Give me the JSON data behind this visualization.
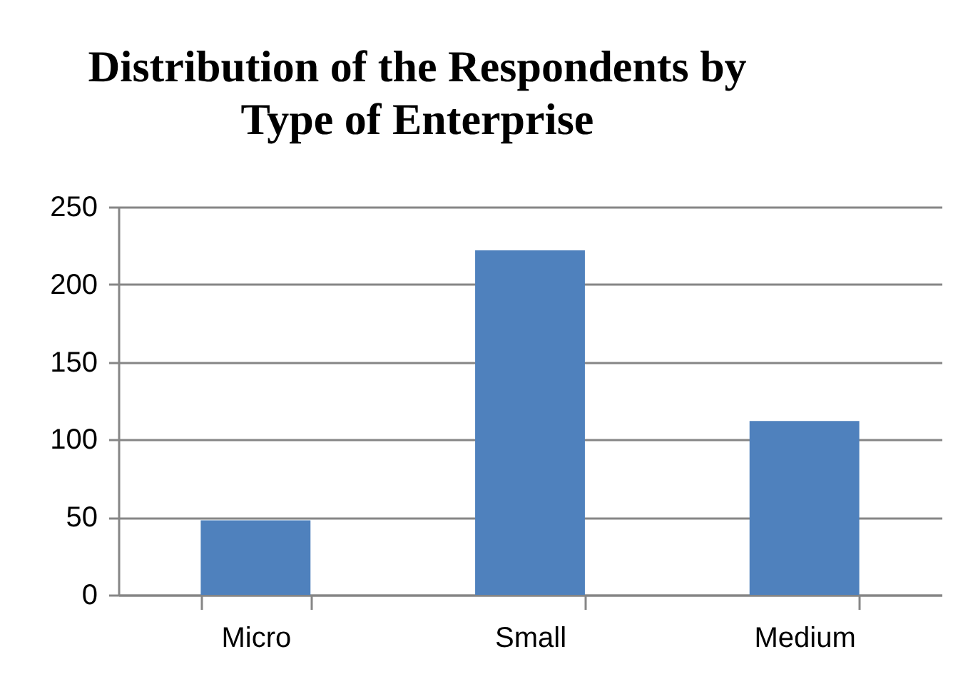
{
  "chart_data": {
    "type": "bar",
    "title": "Distribution of the Respondents by Type of Enterprise",
    "categories": [
      "Micro",
      "Small",
      "Medium"
    ],
    "values": [
      48,
      222,
      112
    ],
    "color": "#4f81bd",
    "ylim": [
      0,
      250
    ],
    "yticks": [
      0,
      50,
      100,
      150,
      200,
      250
    ],
    "grid": "y"
  }
}
